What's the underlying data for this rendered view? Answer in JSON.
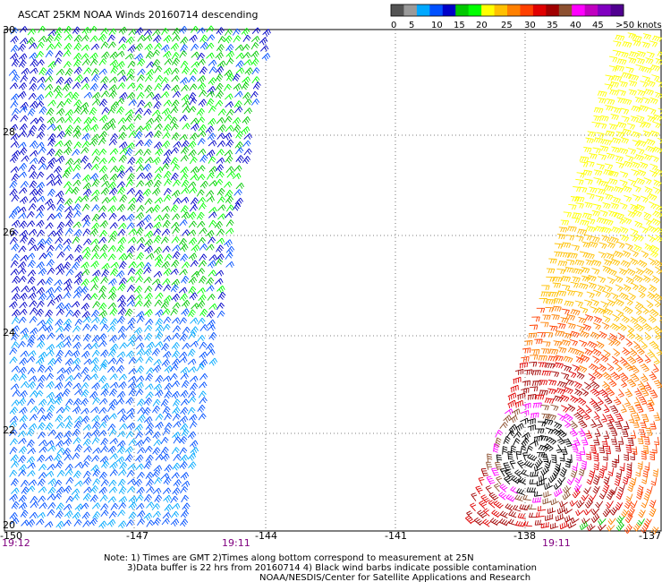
{
  "title": "ASCAT 25KM NOAA Winds 20160714 descending",
  "colorbar": {
    "labels": [
      "0",
      "5",
      "10",
      "15",
      "20",
      "25",
      "30",
      "35",
      "40",
      "45",
      ">50 knots"
    ],
    "colors": [
      "#545454",
      "#9a9a9a",
      "#00a8ff",
      "#0050ff",
      "#0000c8",
      "#00c800",
      "#00ff00",
      "#ffff00",
      "#ffc000",
      "#ff8000",
      "#ff4000",
      "#e00000",
      "#a00000",
      "#8c5030",
      "#ff00ff",
      "#c000c0",
      "#8000c0",
      "#500090"
    ]
  },
  "map": {
    "lon_range": [
      -150,
      -137
    ],
    "lat_range": [
      20,
      30
    ],
    "lon_ticks": [
      "-150",
      "-147",
      "-144",
      "-141",
      "-138",
      "-137"
    ],
    "lat_ticks": [
      "30",
      "28",
      "26",
      "24",
      "22",
      "20"
    ],
    "time_labels": [
      "19:12",
      "19:11",
      "19:11"
    ],
    "time_color": "#800080"
  },
  "notes": [
    "Note: 1) Times are GMT 2)Times along bottom correspond to measurement at 25N",
    "3)Data buffer is 22 hrs from 20160714 4) Black wind barbs indicate possible contamination",
    "NOAA/NESDIS/Center for Satellite Applications and Research"
  ]
}
